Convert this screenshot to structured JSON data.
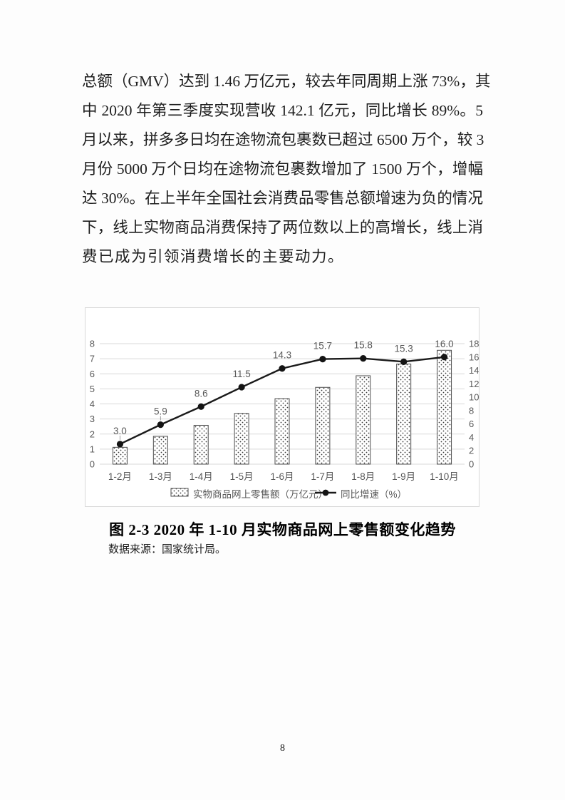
{
  "page": {
    "paragraph_lines": [
      "总额（GMV）达到 1.46 万亿元，较去年同周期上涨 73%，其",
      "中 2020 年第三季度实现营收 142.1 亿元，同比增长 89%。5",
      "月以来，拼多多日均在途物流包裹数已超过 6500 万个，较 3",
      "月份 5000 万个日均在途物流包裹数增加了 1500 万个，增幅",
      "达 30%。在上半年全国社会消费品零售总额增速为负的情况",
      "下，线上实物商品消费保持了两位数以上的高增长，线上消",
      "费已成为引领消费增长的主要动力。"
    ],
    "figure_caption": "图 2-3 2020 年 1-10 月实物商品网上零售额变化趋势",
    "data_source": "数据来源：国家统计局。",
    "page_number": "8"
  },
  "chart_data": {
    "type": "combo-bar-line",
    "categories": [
      "1-2月",
      "1-3月",
      "1-4月",
      "1-5月",
      "1-6月",
      "1-7月",
      "1-8月",
      "1-9月",
      "1-10月"
    ],
    "series": [
      {
        "name": "实物商品网上零售额（万亿元）",
        "type": "bar",
        "axis": "left",
        "values": [
          1.12,
          1.85,
          2.58,
          3.37,
          4.35,
          5.1,
          5.87,
          6.65,
          7.56
        ]
      },
      {
        "name": "同比增速（%）",
        "type": "line",
        "axis": "right",
        "values": [
          3.0,
          5.9,
          8.6,
          11.5,
          14.3,
          15.7,
          15.8,
          15.3,
          16.0
        ],
        "point_labels": [
          "3.0",
          "5.9",
          "8.6",
          "11.5",
          "14.3",
          "15.7",
          "15.8",
          "15.3",
          "16.0"
        ],
        "leader_line_points": [
          0,
          1
        ]
      }
    ],
    "left_axis": {
      "min": 0,
      "max": 8,
      "ticks": [
        0,
        1,
        2,
        3,
        4,
        5,
        6,
        7,
        8
      ]
    },
    "right_axis": {
      "min": 0,
      "max": 18,
      "ticks": [
        0,
        2,
        4,
        6,
        8,
        10,
        12,
        14,
        16,
        18
      ]
    },
    "grid": true,
    "legend_position": "bottom",
    "colors": {
      "line": "#1a1a1a",
      "marker": "#141414",
      "bar_fill": "pattern-dots",
      "bar_dot": "#3a3a3a",
      "bar_stroke": "#4d4d4d",
      "label": "#595959",
      "grid": "#d9d9d9"
    }
  }
}
